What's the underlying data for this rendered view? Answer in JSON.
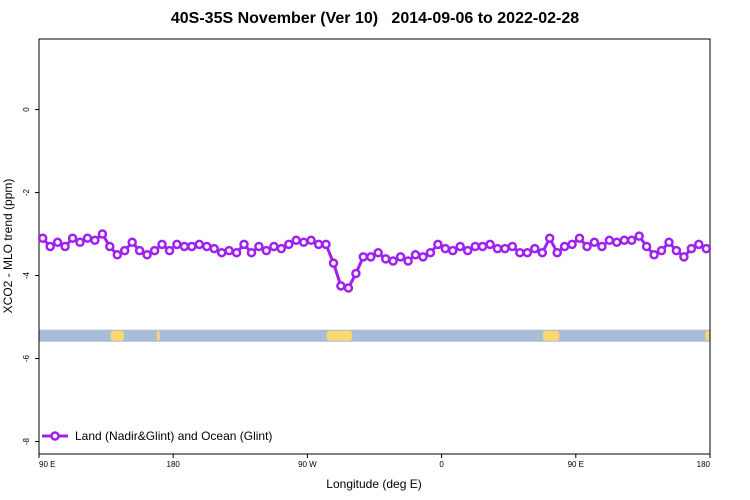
{
  "chart_data": {
    "type": "line",
    "title": "40S-35S November (Ver 10)   2014-09-06 to 2022-02-28",
    "xlabel": "Longitude (deg E)",
    "ylabel": "XCO2 - MLO trend (ppm)",
    "xlim": [
      90,
      540
    ],
    "ylim": [
      -8.3,
      1.7
    ],
    "x_ticks": [
      {
        "value": 90,
        "label": "90 E"
      },
      {
        "value": 180,
        "label": "180"
      },
      {
        "value": 270,
        "label": "90 W"
      },
      {
        "value": 360,
        "label": "0"
      },
      {
        "value": 450,
        "label": "90 E"
      },
      {
        "value": 540,
        "label": "180"
      }
    ],
    "y_ticks": [
      {
        "value": 0,
        "label": "0"
      },
      {
        "value": -2,
        "label": "-2"
      },
      {
        "value": -4,
        "label": "-4"
      },
      {
        "value": -6,
        "label": "-6"
      },
      {
        "value": -8,
        "label": "-8"
      }
    ],
    "grid": false,
    "legend_position": "bottom-left",
    "series": [
      {
        "name": "Land (Nadir&Glint) and Ocean (Glint)",
        "color": "#a020f0",
        "x": [
          92.5,
          97.5,
          102.5,
          107.5,
          112.5,
          117.5,
          122.5,
          127.5,
          132.5,
          137.5,
          142.5,
          147.5,
          152.5,
          157.5,
          162.5,
          167.5,
          172.5,
          177.5,
          182.5,
          187.5,
          192.5,
          197.5,
          202.5,
          207.5,
          212.5,
          217.5,
          222.5,
          227.5,
          232.5,
          237.5,
          242.5,
          247.5,
          252.5,
          257.5,
          262.5,
          267.5,
          272.5,
          277.5,
          282.5,
          287.5,
          292.5,
          297.5,
          302.5,
          307.5,
          312.5,
          317.5,
          322.5,
          327.5,
          332.5,
          337.5,
          342.5,
          347.5,
          352.5,
          357.5,
          362.5,
          367.5,
          372.5,
          377.5,
          382.5,
          387.5,
          392.5,
          397.5,
          402.5,
          407.5,
          412.5,
          417.5,
          422.5,
          427.5,
          432.5,
          437.5,
          442.5,
          447.5,
          452.5,
          457.5,
          462.5,
          467.5,
          472.5,
          477.5,
          482.5,
          487.5,
          492.5,
          497.5,
          502.5,
          507.5,
          512.5,
          517.5,
          522.5,
          527.5,
          532.5,
          537.5
        ],
        "y": [
          -3.1,
          -3.3,
          -3.2,
          -3.3,
          -3.1,
          -3.2,
          -3.1,
          -3.15,
          -3.0,
          -3.3,
          -3.5,
          -3.4,
          -3.2,
          -3.4,
          -3.5,
          -3.4,
          -3.25,
          -3.4,
          -3.25,
          -3.3,
          -3.3,
          -3.25,
          -3.3,
          -3.35,
          -3.45,
          -3.4,
          -3.45,
          -3.25,
          -3.45,
          -3.3,
          -3.4,
          -3.3,
          -3.35,
          -3.25,
          -3.15,
          -3.2,
          -3.15,
          -3.25,
          -3.25,
          -3.7,
          -4.25,
          -4.3,
          -3.95,
          -3.55,
          -3.55,
          -3.45,
          -3.6,
          -3.65,
          -3.55,
          -3.65,
          -3.5,
          -3.55,
          -3.45,
          -3.25,
          -3.35,
          -3.4,
          -3.3,
          -3.4,
          -3.3,
          -3.3,
          -3.25,
          -3.35,
          -3.35,
          -3.3,
          -3.45,
          -3.45,
          -3.35,
          -3.45,
          -3.1,
          -3.45,
          -3.3,
          -3.25,
          -3.1,
          -3.3,
          -3.2,
          -3.3,
          -3.15,
          -3.2,
          -3.15,
          -3.15,
          -3.05,
          -3.3,
          -3.5,
          -3.4,
          -3.2,
          -3.4,
          -3.55,
          -3.35,
          -3.25,
          -3.35
        ]
      }
    ],
    "land_ocean_strip": {
      "y": -5.45,
      "ocean_color": "#a9bcd8",
      "land_color": "#f9d870",
      "land_ranges": [
        [
          138,
          147
        ],
        [
          169,
          171
        ],
        [
          283,
          300
        ],
        [
          428,
          439
        ],
        [
          537,
          540
        ]
      ]
    }
  }
}
